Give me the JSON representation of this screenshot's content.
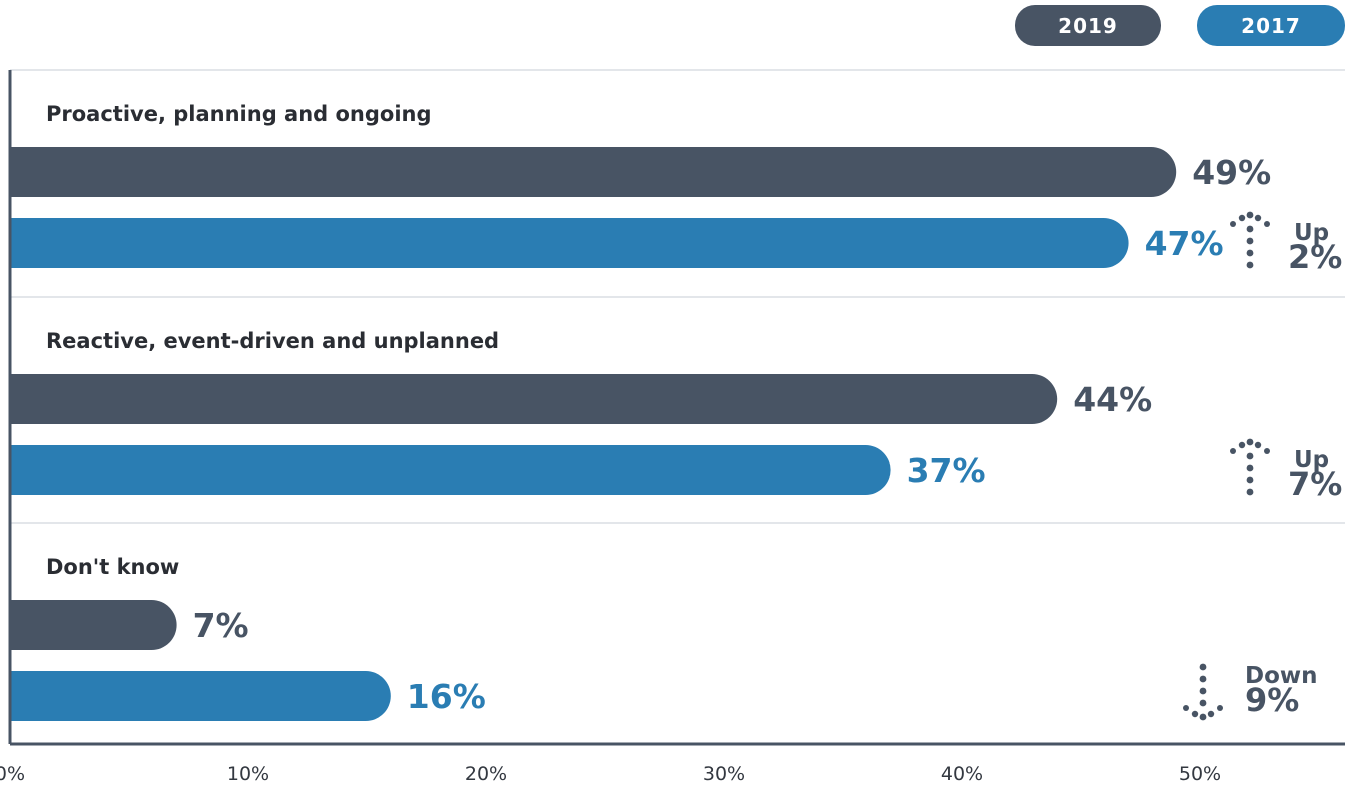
{
  "chart_data": {
    "type": "bar",
    "orientation": "horizontal",
    "categories": [
      "Proactive, planning and ongoing",
      "Reactive, event-driven and unplanned",
      "Don't know"
    ],
    "series": [
      {
        "name": "2019",
        "values": [
          49,
          44,
          7
        ],
        "labels": [
          "49%",
          "44%",
          "7%"
        ],
        "color": "#485464"
      },
      {
        "name": "2017",
        "values": [
          47,
          37,
          16
        ],
        "labels": [
          "47%",
          "37%",
          "16%"
        ],
        "color": "#2a7db3"
      }
    ],
    "changes": [
      {
        "direction": "up",
        "word": "Up",
        "amount": "2%"
      },
      {
        "direction": "up",
        "word": "Up",
        "amount": "7%"
      },
      {
        "direction": "down",
        "word": "Down",
        "amount": "9%"
      }
    ],
    "xlim": [
      0,
      55
    ],
    "ticks": [
      0,
      10,
      20,
      30,
      40,
      50
    ],
    "tick_labels": [
      "0%",
      "10%",
      "20%",
      "30%",
      "40%",
      "50%"
    ],
    "legend_position": "top-right",
    "grid": false
  }
}
